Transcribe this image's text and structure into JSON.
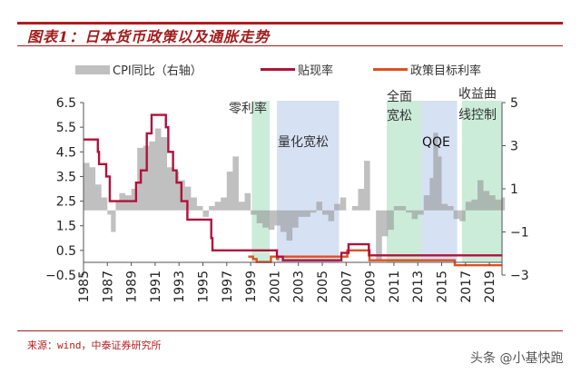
{
  "header": {
    "title": "图表1：日本货币政策以及通胀走势"
  },
  "legend": [
    {
      "label": "CPI同比（右轴）",
      "type": "bar",
      "color": "#c0c0c0"
    },
    {
      "label": "贴现率",
      "type": "line",
      "color": "#b0123c"
    },
    {
      "label": "政策目标利率",
      "type": "line",
      "color": "#e0501e"
    }
  ],
  "footer": {
    "source": "来源：wind，中泰证券研究所",
    "watermark": "头条 @小基快跑"
  },
  "colors": {
    "accent": "#a41c1c",
    "green_region": "#cdebd8",
    "blue_region": "#d5dff0"
  },
  "chart_data": {
    "type": "line",
    "title": "图表1：日本货币政策以及通胀走势",
    "x_ticks": [
      "1985",
      "1987",
      "1989",
      "1991",
      "1993",
      "1995",
      "1997",
      "1999",
      "2001",
      "2003",
      "2005",
      "2007",
      "2009",
      "2011",
      "2013",
      "2015",
      "2017",
      "2019"
    ],
    "left_axis": {
      "ticks": [
        "6.5",
        "5.5",
        "4.5",
        "3.5",
        "2.5",
        "1.5",
        "0.5",
        "−0.5"
      ],
      "range": [
        -0.5,
        6.5
      ]
    },
    "right_axis": {
      "ticks": [
        "5",
        "3",
        "1",
        "−1",
        "−3"
      ],
      "range": [
        -3,
        5
      ]
    },
    "regions": [
      {
        "label": "零利率",
        "start": 1999.1,
        "end": 2000.6,
        "color": "green"
      },
      {
        "label": "量化宽松",
        "start": 2001.2,
        "end": 2006.4,
        "color": "blue"
      },
      {
        "label": "全面宽松",
        "start": 2010.4,
        "end": 2013.3,
        "color": "green"
      },
      {
        "label": "QQE",
        "start": 2013.3,
        "end": 2016.3,
        "color": "blue"
      },
      {
        "label": "收益曲线控制",
        "start": 2016.7,
        "end": 2020.1,
        "color": "green"
      }
    ],
    "series": [
      {
        "name": "贴现率",
        "axis": "left",
        "step": true,
        "points": [
          [
            1985,
            5.0
          ],
          [
            1986.1,
            5.0
          ],
          [
            1986.2,
            4.5
          ],
          [
            1986.3,
            4.0
          ],
          [
            1986.9,
            3.5
          ],
          [
            1987.2,
            3.0
          ],
          [
            1987.2,
            2.5
          ],
          [
            1989.4,
            2.5
          ],
          [
            1989.4,
            3.25
          ],
          [
            1989.8,
            3.75
          ],
          [
            1990.3,
            5.25
          ],
          [
            1990.7,
            6.0
          ],
          [
            1991.5,
            6.0
          ],
          [
            1991.9,
            5.5
          ],
          [
            1992.1,
            4.5
          ],
          [
            1992.5,
            3.75
          ],
          [
            1992.8,
            3.25
          ],
          [
            1993.2,
            2.5
          ],
          [
            1993.7,
            1.75
          ],
          [
            1995.3,
            1.75
          ],
          [
            1995.7,
            1.0
          ],
          [
            1995.8,
            0.5
          ],
          [
            2001.1,
            0.5
          ],
          [
            2001.2,
            0.25
          ],
          [
            2001.7,
            0.1
          ],
          [
            2006.6,
            0.1
          ],
          [
            2006.6,
            0.4
          ],
          [
            2007.2,
            0.75
          ],
          [
            2008.8,
            0.75
          ],
          [
            2008.9,
            0.5
          ],
          [
            2008.95,
            0.3
          ],
          [
            2020.1,
            0.3
          ]
        ]
      },
      {
        "name": "政策目标利率",
        "axis": "left",
        "step": true,
        "points": [
          [
            1998.8,
            0.25
          ],
          [
            1999.2,
            0.15
          ],
          [
            1999.5,
            0.03
          ],
          [
            2000.6,
            0.03
          ],
          [
            2000.7,
            0.25
          ],
          [
            2001.2,
            0.15
          ],
          [
            2001.3,
            0.25
          ],
          [
            2006.5,
            0.25
          ],
          [
            2006.6,
            0.25
          ],
          [
            2007.1,
            0.5
          ],
          [
            2008.8,
            0.5
          ],
          [
            2008.9,
            0.3
          ],
          [
            2008.95,
            0.1
          ],
          [
            2016.1,
            0.1
          ],
          [
            2016.1,
            -0.1
          ],
          [
            2020.1,
            -0.1
          ]
        ]
      },
      {
        "name": "CPI同比（右轴）",
        "axis": "right",
        "type": "bar",
        "points": [
          [
            1985,
            2.2
          ],
          [
            1985.5,
            2.0
          ],
          [
            1986,
            1.2
          ],
          [
            1986.5,
            0.6
          ],
          [
            1987,
            -0.2
          ],
          [
            1987.3,
            -1.0
          ],
          [
            1987.7,
            0.4
          ],
          [
            1988,
            0.8
          ],
          [
            1988.5,
            0.7
          ],
          [
            1989,
            1.0
          ],
          [
            1989.5,
            2.9
          ],
          [
            1990,
            3.0
          ],
          [
            1990.5,
            3.2
          ],
          [
            1991,
            3.8
          ],
          [
            1991.5,
            3.4
          ],
          [
            1992,
            2.0
          ],
          [
            1992.5,
            1.8
          ],
          [
            1993,
            1.4
          ],
          [
            1993.5,
            1.1
          ],
          [
            1994,
            0.6
          ],
          [
            1994.5,
            0.2
          ],
          [
            1995,
            -0.3
          ],
          [
            1995.5,
            0.2
          ],
          [
            1996,
            0.4
          ],
          [
            1996.5,
            0.6
          ],
          [
            1997,
            1.8
          ],
          [
            1997.5,
            2.5
          ],
          [
            1998,
            0.4
          ],
          [
            1998.5,
            0.8
          ],
          [
            1999,
            -0.2
          ],
          [
            1999.5,
            -0.6
          ],
          [
            2000,
            -0.8
          ],
          [
            2000.5,
            -0.9
          ],
          [
            2001,
            -0.7
          ],
          [
            2001.5,
            -1.0
          ],
          [
            2002,
            -1.4
          ],
          [
            2002.5,
            -0.8
          ],
          [
            2003,
            -0.3
          ],
          [
            2003.5,
            -0.3
          ],
          [
            2004,
            -0.1
          ],
          [
            2004.5,
            0.4
          ],
          [
            2005,
            -0.2
          ],
          [
            2005.5,
            -0.5
          ],
          [
            2006,
            0.3
          ],
          [
            2006.5,
            0.6
          ],
          [
            2007,
            0.0
          ],
          [
            2007.5,
            0.2
          ],
          [
            2008,
            1.0
          ],
          [
            2008.5,
            2.3
          ],
          [
            2009,
            0.0
          ],
          [
            2009.5,
            -2.3
          ],
          [
            2010,
            -1.2
          ],
          [
            2010.5,
            -0.9
          ],
          [
            2011,
            0.2
          ],
          [
            2011.5,
            0.2
          ],
          [
            2012,
            -0.1
          ],
          [
            2012.5,
            -0.4
          ],
          [
            2013,
            -0.2
          ],
          [
            2013.5,
            0.7
          ],
          [
            2014,
            1.5
          ],
          [
            2014.3,
            3.6
          ],
          [
            2014.7,
            2.5
          ],
          [
            2015,
            0.3
          ],
          [
            2015.5,
            0.2
          ],
          [
            2016,
            -0.4
          ],
          [
            2016.5,
            -0.5
          ],
          [
            2017,
            0.4
          ],
          [
            2017.5,
            0.5
          ],
          [
            2018,
            1.4
          ],
          [
            2018.5,
            0.9
          ],
          [
            2019,
            0.7
          ],
          [
            2019.5,
            0.5
          ],
          [
            2020,
            0.6
          ]
        ]
      }
    ]
  }
}
